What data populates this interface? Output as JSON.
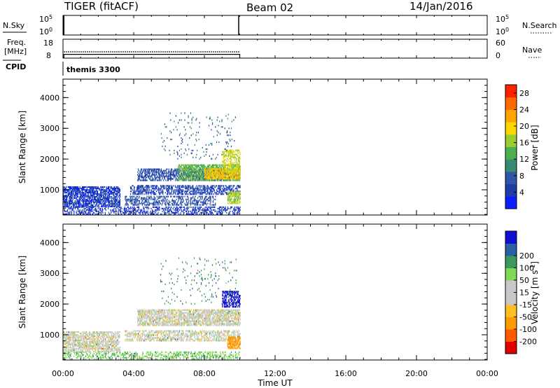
{
  "header": {
    "radar": "TIGER (fitACF)",
    "beam": "Beam 02",
    "date": "14/Jan/2016"
  },
  "status_panels": {
    "nsky_label": "N.Sky",
    "nsearch_label": "N.Search",
    "freq_label_line1": "Freq.",
    "freq_label_line2": "[MHz]",
    "nave_label": "Nave",
    "cpid_label": "CPID",
    "noise_ticks_left": [
      "10^5",
      "10^0"
    ],
    "noise_ticks_right": [
      "10^5",
      "10^0"
    ],
    "freq_ticks_left": [
      "18",
      "8"
    ],
    "nave_ticks_right": [
      "60",
      "0"
    ],
    "cpid_text": "themis 3300",
    "freq_mhz": 10,
    "nave": 20
  },
  "colors": {
    "power_scale": [
      "#0a1eff",
      "#1c3ea6",
      "#2f56a8",
      "#3a8a6f",
      "#4caf50",
      "#9acd32",
      "#ffd700",
      "#ffa500",
      "#ff6a00",
      "#ff2000"
    ],
    "velocity_scale": [
      "#e00000",
      "#ff5a00",
      "#ff9a00",
      "#ffc020",
      "#c8c8c8",
      "#c8c8c8",
      "#7ed957",
      "#3a9a5a",
      "#2d5fa8",
      "#1010d0"
    ],
    "ground_scatter": "#c0c0c0"
  },
  "chart_data": [
    {
      "type": "heatmap",
      "name": "Power",
      "ylabel": "Slant Range [km]",
      "colorbar_label": "Power [dB]",
      "colorbar_ticks": [
        "4",
        "8",
        "12",
        "16",
        "20",
        "24",
        "28"
      ],
      "xlim": [
        0,
        24
      ],
      "ylim": [
        180,
        4600
      ],
      "yticks": [
        "1000",
        "2000",
        "3000",
        "4000"
      ],
      "ytick_values": [
        1000,
        2000,
        3000,
        4000
      ],
      "regions": [
        {
          "t": [
            0,
            10
          ],
          "r": [
            200,
            450
          ],
          "v": 4,
          "density": 0.35
        },
        {
          "t": [
            0,
            3.2
          ],
          "r": [
            450,
            1100
          ],
          "v": 4,
          "density": 0.6
        },
        {
          "t": [
            3.5,
            8.6
          ],
          "r": [
            500,
            800
          ],
          "v": 6,
          "density": 0.35
        },
        {
          "t": [
            3.8,
            10
          ],
          "r": [
            850,
            1150
          ],
          "v": 5,
          "density": 0.45
        },
        {
          "t": [
            4.2,
            9.5
          ],
          "r": [
            1300,
            1700
          ],
          "v": 6,
          "density": 0.5
        },
        {
          "t": [
            6.5,
            10
          ],
          "r": [
            1300,
            1800
          ],
          "v": 14,
          "density": 0.6
        },
        {
          "t": [
            8.0,
            10
          ],
          "r": [
            1350,
            1700
          ],
          "v": 21,
          "density": 0.6
        },
        {
          "t": [
            9.0,
            10
          ],
          "r": [
            1600,
            2300
          ],
          "v": 18,
          "density": 0.45
        },
        {
          "t": [
            9.3,
            10
          ],
          "r": [
            550,
            950
          ],
          "v": 17,
          "density": 0.6
        },
        {
          "t": [
            5.5,
            9.8
          ],
          "r": [
            2000,
            3500
          ],
          "v": 8,
          "density": 0.03
        }
      ]
    },
    {
      "type": "heatmap",
      "name": "Velocity",
      "ylabel": "Slant Range [km]",
      "xlabel": "Time UT",
      "colorbar_label": "Velocity [m s^-1]",
      "colorbar_ticks": [
        "-200",
        "-100",
        "-50",
        "-15",
        "15",
        "50",
        "100",
        "200"
      ],
      "xlim": [
        0,
        24
      ],
      "ylim": [
        180,
        4600
      ],
      "yticks": [
        "1000",
        "2000",
        "3000",
        "4000"
      ],
      "ytick_values": [
        1000,
        2000,
        3000,
        4000
      ],
      "xticks": [
        "00:00",
        "04:00",
        "08:00",
        "12:00",
        "16:00",
        "20:00",
        "00:00"
      ],
      "xtick_values": [
        0,
        4,
        8,
        12,
        16,
        20,
        24
      ],
      "regions": [
        {
          "t": [
            0,
            10
          ],
          "r": [
            200,
            450
          ],
          "v": 40,
          "density": 0.3
        },
        {
          "t": [
            0,
            3.2
          ],
          "r": [
            450,
            1100
          ],
          "v": 0,
          "density": 0.55
        },
        {
          "t": [
            3.5,
            10
          ],
          "r": [
            800,
            1150
          ],
          "v": 0,
          "density": 0.45
        },
        {
          "t": [
            4.2,
            10
          ],
          "r": [
            1300,
            1800
          ],
          "v": 0,
          "density": 0.6
        },
        {
          "t": [
            9.0,
            10
          ],
          "r": [
            1900,
            2400
          ],
          "v": 250,
          "density": 0.5
        },
        {
          "t": [
            9.3,
            10
          ],
          "r": [
            550,
            950
          ],
          "v": -70,
          "density": 0.6
        },
        {
          "t": [
            5.5,
            9.8
          ],
          "r": [
            2000,
            3500
          ],
          "v": 90,
          "density": 0.03
        }
      ]
    }
  ]
}
